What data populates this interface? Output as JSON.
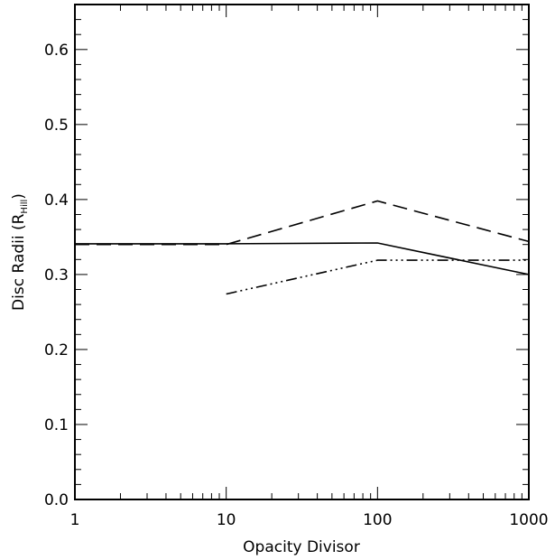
{
  "chart_data": {
    "type": "line",
    "xlabel": "Opacity Divisor",
    "ylabel_main": "Disc Radii (R",
    "ylabel_sub": "Hill",
    "ylabel_close": ")",
    "xscale": "log",
    "xlim": [
      1,
      1000
    ],
    "ylim": [
      0.0,
      0.66
    ],
    "grid": false,
    "legend": "none",
    "x_ticks": [
      1,
      10,
      100,
      1000
    ],
    "x_tick_labels": [
      "1",
      "10",
      "100",
      "1000"
    ],
    "y_ticks": [
      0.0,
      0.1,
      0.2,
      0.3,
      0.4,
      0.5,
      0.6
    ],
    "y_tick_labels": [
      "0.0",
      "0.1",
      "0.2",
      "0.3",
      "0.4",
      "0.5",
      "0.6"
    ],
    "series": [
      {
        "style": "solid",
        "x": [
          1,
          10,
          100,
          1000
        ],
        "y": [
          0.341,
          0.341,
          0.342,
          0.3
        ]
      },
      {
        "style": "dashed",
        "x": [
          1,
          10,
          100,
          1000
        ],
        "y": [
          0.34,
          0.34,
          0.398,
          0.344
        ]
      },
      {
        "style": "dash-dot-dot",
        "x": [
          10,
          100,
          1000
        ],
        "y": [
          0.274,
          0.319,
          0.319
        ]
      }
    ]
  }
}
